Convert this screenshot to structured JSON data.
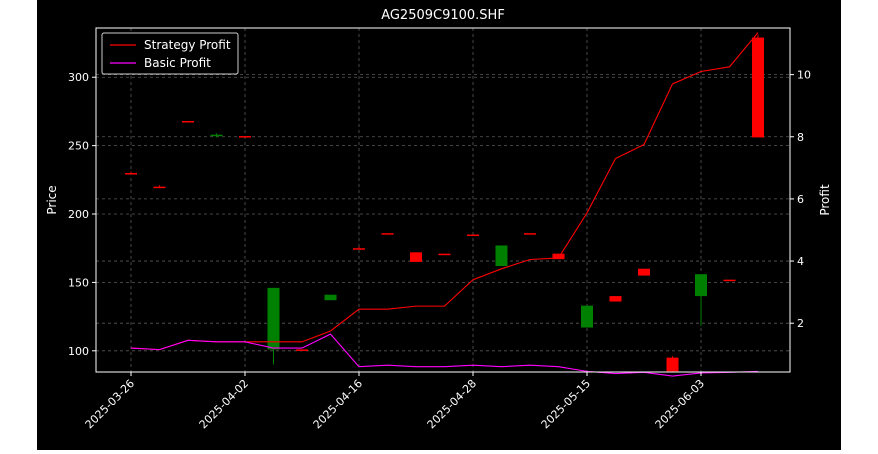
{
  "chart_data": {
    "type": "candlestick+line",
    "title": "AG2509C9100.SHF",
    "ylabel_left": "Price",
    "ylabel_right": "Profit",
    "xlabel": "",
    "x_tick_labels": [
      "2025-03-26",
      "2025-04-02",
      "2025-04-16",
      "2025-04-28",
      "2025-05-15",
      "2025-06-03"
    ],
    "x_tick_index": [
      0,
      4,
      8,
      12,
      16,
      20
    ],
    "y_left_ticks": [
      100,
      150,
      200,
      250,
      300
    ],
    "y_left_lim": [
      84.5,
      336
    ],
    "y_right_ticks": [
      2,
      4,
      6,
      8,
      10
    ],
    "y_right_lim": [
      0.43,
      11.5
    ],
    "grid": true,
    "legend_position": "upper-left",
    "legend": [
      {
        "label": "Strategy Profit",
        "color": "#ff0000"
      },
      {
        "label": "Basic Profit",
        "color": "#ff00ff"
      }
    ],
    "colors": {
      "up": "#ff0000",
      "down": "#008000",
      "strategy": "#ff0000",
      "basic": "#ff00ff",
      "grid": "#5a5a5a"
    },
    "candles": [
      {
        "i": 0,
        "open": 230,
        "close": 230,
        "high": 231,
        "low": 230
      },
      {
        "i": 1,
        "open": 220,
        "close": 220,
        "high": 221,
        "low": 220
      },
      {
        "i": 2,
        "open": 268,
        "close": 268,
        "high": 268,
        "low": 268
      },
      {
        "i": 3,
        "open": 258,
        "close": 257,
        "high": 259,
        "low": 256
      },
      {
        "i": 4,
        "open": 257,
        "close": 257,
        "high": 257,
        "low": 257
      },
      {
        "i": 5,
        "open": 146,
        "close": 101,
        "high": 146,
        "low": 90
      },
      {
        "i": 6,
        "open": 101,
        "close": 101,
        "high": 101,
        "low": 101
      },
      {
        "i": 7,
        "open": 141,
        "close": 137,
        "high": 141,
        "low": 137
      },
      {
        "i": 8,
        "open": 175,
        "close": 175,
        "high": 176,
        "low": 175
      },
      {
        "i": 9,
        "open": 186,
        "close": 186,
        "high": 186,
        "low": 186
      },
      {
        "i": 10,
        "open": 165,
        "close": 172,
        "high": 172,
        "low": 165
      },
      {
        "i": 11,
        "open": 171,
        "close": 171,
        "high": 171,
        "low": 171
      },
      {
        "i": 12,
        "open": 185,
        "close": 185,
        "high": 185,
        "low": 185
      },
      {
        "i": 13,
        "open": 177,
        "close": 162,
        "high": 177,
        "low": 162
      },
      {
        "i": 14,
        "open": 186,
        "close": 186,
        "high": 186,
        "low": 186
      },
      {
        "i": 15,
        "open": 167,
        "close": 171,
        "high": 171,
        "low": 167
      },
      {
        "i": 16,
        "open": 133,
        "close": 117,
        "high": 133,
        "low": 117
      },
      {
        "i": 17,
        "open": 136,
        "close": 140,
        "high": 140,
        "low": 136
      },
      {
        "i": 18,
        "open": 155,
        "close": 160,
        "high": 160,
        "low": 155
      },
      {
        "i": 19,
        "open": 85,
        "close": 95,
        "high": 96,
        "low": 85
      },
      {
        "i": 20,
        "open": 156,
        "close": 140,
        "high": 156,
        "low": 118
      },
      {
        "i": 21,
        "open": 152,
        "close": 152,
        "high": 152,
        "low": 152
      },
      {
        "i": 22,
        "open": 256,
        "close": 329,
        "high": 331,
        "low": 256
      }
    ],
    "series": [
      {
        "name": "Strategy Profit",
        "axis": "right",
        "color": "#ff0000",
        "values": [
          1.2,
          1.15,
          1.45,
          1.4,
          1.4,
          1.4,
          1.4,
          1.75,
          2.45,
          2.45,
          2.55,
          2.55,
          3.4,
          3.75,
          4.05,
          4.1,
          5.55,
          7.3,
          7.75,
          9.7,
          10.1,
          10.25,
          11.35
        ]
      },
      {
        "name": "Basic Profit",
        "axis": "right",
        "color": "#ff00ff",
        "values": [
          1.2,
          1.15,
          1.45,
          1.4,
          1.4,
          1.2,
          1.2,
          1.65,
          0.6,
          0.65,
          0.6,
          0.6,
          0.65,
          0.6,
          0.65,
          0.6,
          0.45,
          0.38,
          0.42,
          0.3,
          0.4,
          0.42,
          0.45
        ]
      }
    ]
  }
}
